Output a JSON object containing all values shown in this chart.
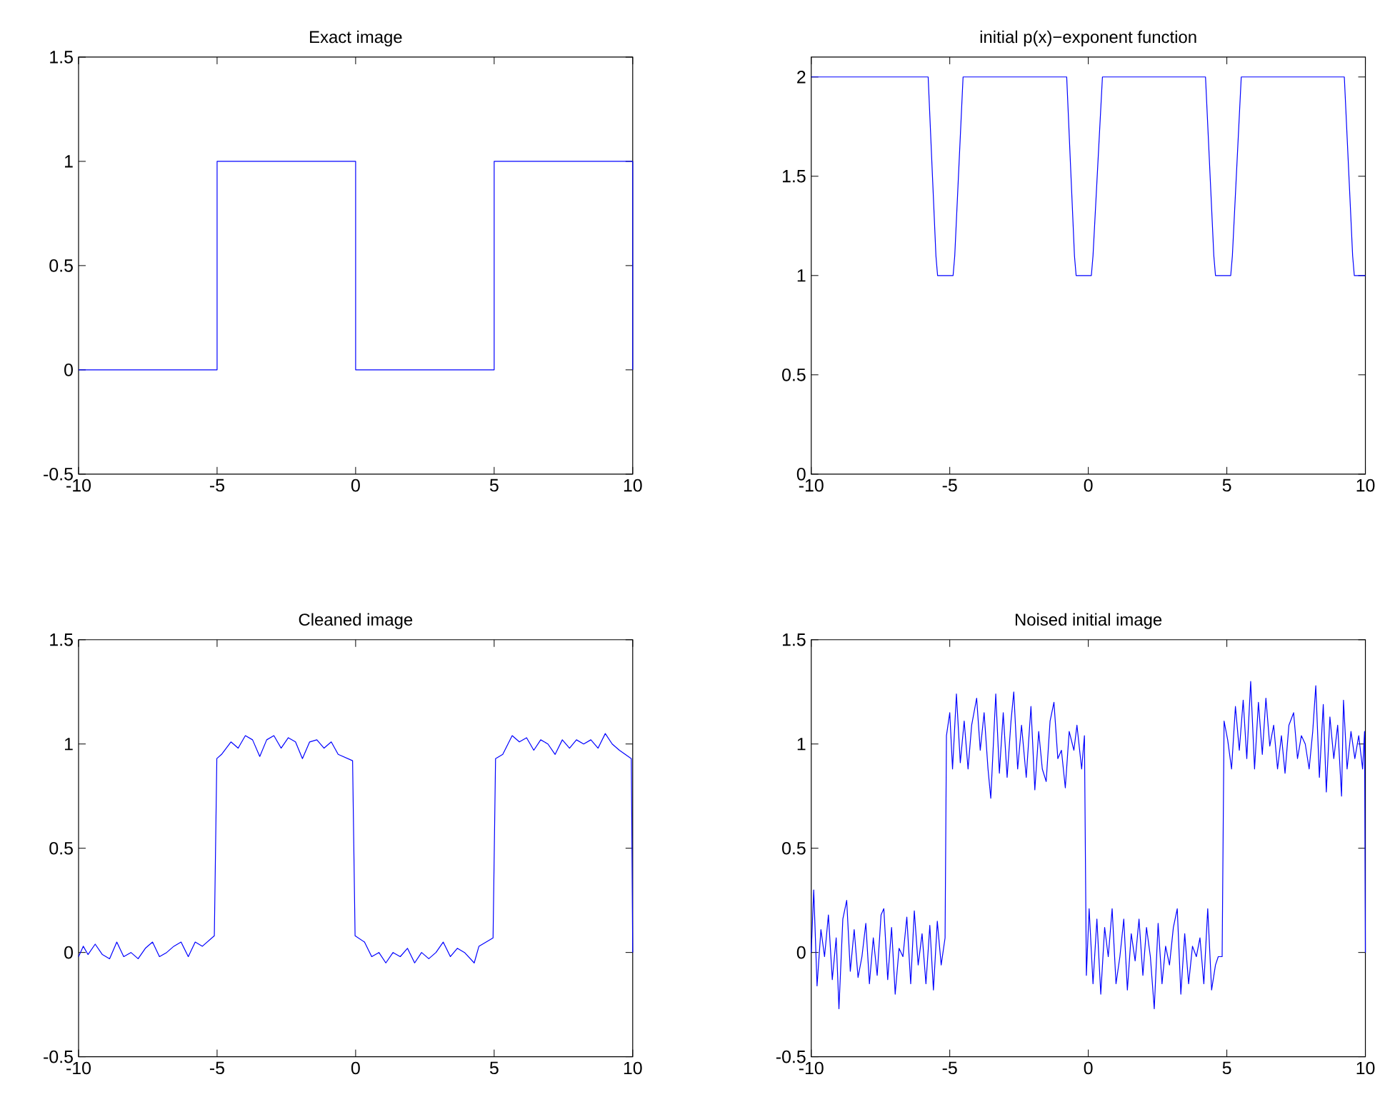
{
  "chart_data": [
    {
      "type": "line",
      "title": "Exact image",
      "color": "#0000ff",
      "xlim": [
        -10,
        10
      ],
      "ylim": [
        -0.5,
        1.5
      ],
      "xticks": [
        -10,
        -5,
        0,
        5,
        10
      ],
      "yticks": [
        -0.5,
        0,
        0.5,
        1,
        1.5
      ],
      "x": [
        -10,
        -5,
        -5,
        0,
        0,
        5,
        5,
        10,
        10
      ],
      "values": [
        0,
        0,
        1,
        1,
        0,
        0,
        1,
        1,
        0
      ]
    },
    {
      "type": "line",
      "title": "initial p(x)−exponent function",
      "color": "#0000ff",
      "xlim": [
        -10,
        10
      ],
      "ylim": [
        0,
        2.1
      ],
      "xticks": [
        -10,
        -5,
        0,
        5,
        10
      ],
      "yticks": [
        0,
        0.5,
        1,
        1.5,
        2
      ],
      "x": [
        -10,
        -5.78,
        -5.5,
        -5.44,
        -4.88,
        -4.82,
        -4.52,
        -0.78,
        -0.5,
        -0.44,
        0.11,
        0.17,
        0.51,
        4.23,
        4.53,
        4.59,
        5.14,
        5.2,
        5.52,
        9.24,
        9.54,
        9.6,
        10
      ],
      "values": [
        2,
        2,
        1.1,
        1,
        1,
        1.1,
        2,
        2,
        1.1,
        1,
        1,
        1.1,
        2,
        2,
        1.1,
        1,
        1,
        1.1,
        2,
        2,
        1.1,
        1,
        1
      ]
    },
    {
      "type": "line",
      "title": "Cleaned image",
      "color": "#0000ff",
      "xlim": [
        -10,
        10
      ],
      "ylim": [
        -0.5,
        1.5
      ],
      "xticks": [
        -10,
        -5,
        0,
        5,
        10
      ],
      "yticks": [
        -0.5,
        0,
        0.5,
        1,
        1.5
      ],
      "x": [
        -10,
        -9.83,
        -9.66,
        -9.4,
        -9.14,
        -8.88,
        -8.62,
        -8.37,
        -8.11,
        -7.85,
        -7.59,
        -7.33,
        -7.08,
        -6.82,
        -6.56,
        -6.3,
        -6.04,
        -5.79,
        -5.53,
        -5.1,
        -5.01,
        -4.84,
        -4.5,
        -4.24,
        -3.98,
        -3.72,
        -3.46,
        -3.21,
        -2.95,
        -2.69,
        -2.43,
        -2.17,
        -1.92,
        -1.66,
        -1.4,
        -1.14,
        -0.88,
        -0.63,
        -0.11,
        -0.02,
        0.32,
        0.58,
        0.84,
        1.09,
        1.35,
        1.61,
        1.87,
        2.13,
        2.38,
        2.64,
        2.9,
        3.16,
        3.42,
        3.67,
        3.93,
        4.28,
        4.45,
        4.96,
        5.05,
        5.31,
        5.65,
        5.91,
        6.17,
        6.43,
        6.68,
        6.94,
        7.2,
        7.46,
        7.72,
        7.97,
        8.23,
        8.49,
        8.75,
        9.01,
        9.26,
        9.52,
        9.95,
        10
      ],
      "values": [
        -0.02,
        0.03,
        -0.01,
        0.04,
        -0.01,
        -0.03,
        0.05,
        -0.02,
        0,
        -0.03,
        0.02,
        0.05,
        -0.02,
        0,
        0.03,
        0.05,
        -0.02,
        0.05,
        0.03,
        0.08,
        0.93,
        0.95,
        1.01,
        0.98,
        1.04,
        1.02,
        0.94,
        1.02,
        1.04,
        0.98,
        1.03,
        1.01,
        0.93,
        1.01,
        1.02,
        0.98,
        1.01,
        0.95,
        0.92,
        0.08,
        0.05,
        -0.02,
        0,
        -0.05,
        0,
        -0.02,
        0.02,
        -0.05,
        0,
        -0.03,
        0,
        0.05,
        -0.02,
        0.02,
        0,
        -0.05,
        0.03,
        0.07,
        0.93,
        0.95,
        1.04,
        1.01,
        1.03,
        0.97,
        1.02,
        1,
        0.95,
        1.02,
        0.98,
        1.02,
        1,
        1.02,
        0.98,
        1.05,
        1,
        0.97,
        0.93,
        0
      ]
    },
    {
      "type": "line",
      "title": "Noised initial image",
      "color": "#0000ff",
      "xlim": [
        -10,
        10
      ],
      "ylim": [
        -0.5,
        1.5
      ],
      "xticks": [
        -10,
        -5,
        0,
        5,
        10
      ],
      "yticks": [
        -0.5,
        0,
        0.5,
        1,
        1.5
      ],
      "x": [
        -10,
        -9.91,
        -9.79,
        -9.65,
        -9.52,
        -9.38,
        -9.24,
        -9.1,
        -9,
        -8.86,
        -8.72,
        -8.59,
        -8.45,
        -8.31,
        -8.17,
        -8.03,
        -7.9,
        -7.76,
        -7.62,
        -7.48,
        -7.38,
        -7.24,
        -7.1,
        -6.97,
        -6.83,
        -6.69,
        -6.55,
        -6.41,
        -6.28,
        -6.14,
        -6,
        -5.86,
        -5.72,
        -5.59,
        -5.45,
        -5.31,
        -5.17,
        -5.12,
        -5,
        -4.9,
        -4.76,
        -4.62,
        -4.48,
        -4.34,
        -4.21,
        -4.03,
        -3.9,
        -3.76,
        -3.62,
        -3.52,
        -3.34,
        -3.21,
        -3.07,
        -2.93,
        -2.79,
        -2.69,
        -2.55,
        -2.41,
        -2.24,
        -2.07,
        -1.93,
        -1.79,
        -1.66,
        -1.52,
        -1.38,
        -1.24,
        -1.1,
        -0.97,
        -0.83,
        -0.69,
        -0.52,
        -0.41,
        -0.24,
        -0.14,
        -0.07,
        0.03,
        0.17,
        0.31,
        0.45,
        0.59,
        0.72,
        0.86,
        1,
        1.14,
        1.28,
        1.41,
        1.55,
        1.69,
        1.83,
        1.97,
        2.1,
        2.24,
        2.38,
        2.52,
        2.66,
        2.79,
        2.93,
        3.07,
        3.21,
        3.34,
        3.48,
        3.62,
        3.76,
        3.9,
        4.03,
        4.17,
        4.31,
        4.45,
        4.59,
        4.69,
        4.83,
        4.9,
        5.03,
        5.17,
        5.31,
        5.45,
        5.59,
        5.72,
        5.86,
        6,
        6.14,
        6.28,
        6.41,
        6.55,
        6.69,
        6.83,
        6.97,
        7.1,
        7.24,
        7.41,
        7.55,
        7.69,
        7.83,
        7.97,
        8.1,
        8.21,
        8.34,
        8.48,
        8.59,
        8.72,
        8.86,
        9,
        9.14,
        9.21,
        9.34,
        9.48,
        9.62,
        9.76,
        9.9,
        9.97,
        10
      ],
      "values": [
        0,
        0.3,
        -0.16,
        0.11,
        -0.02,
        0.18,
        -0.13,
        0.07,
        -0.27,
        0.16,
        0.25,
        -0.09,
        0.11,
        -0.12,
        -0.02,
        0.14,
        -0.15,
        0.07,
        -0.11,
        0.18,
        0.21,
        -0.13,
        0.12,
        -0.2,
        0.02,
        -0.02,
        0.17,
        -0.15,
        0.2,
        -0.06,
        0.09,
        -0.15,
        0.13,
        -0.18,
        0.15,
        -0.06,
        0.07,
        1.04,
        1.15,
        0.88,
        1.24,
        0.91,
        1.11,
        0.88,
        1.09,
        1.22,
        0.97,
        1.15,
        0.88,
        0.74,
        1.24,
        0.86,
        1.15,
        0.84,
        1.11,
        1.25,
        0.88,
        1.09,
        0.84,
        1.18,
        0.78,
        1.06,
        0.88,
        0.82,
        1.11,
        1.2,
        0.93,
        0.97,
        0.79,
        1.06,
        0.97,
        1.09,
        0.88,
        1.04,
        -0.11,
        0.21,
        -0.15,
        0.16,
        -0.2,
        0.12,
        -0.02,
        0.21,
        -0.15,
        -0.02,
        0.16,
        -0.18,
        0.09,
        -0.04,
        0.16,
        -0.11,
        0.12,
        -0.02,
        -0.27,
        0.14,
        -0.15,
        0.03,
        -0.06,
        0.12,
        0.21,
        -0.2,
        0.09,
        -0.15,
        0.03,
        -0.02,
        0.07,
        -0.15,
        0.21,
        -0.18,
        -0.06,
        -0.02,
        -0.02,
        1.11,
        1.02,
        0.88,
        1.18,
        0.97,
        1.21,
        0.93,
        1.3,
        0.88,
        1.2,
        0.95,
        1.22,
        0.99,
        1.09,
        0.88,
        1.04,
        0.86,
        1.09,
        1.15,
        0.93,
        1.04,
        1,
        0.88,
        1.06,
        1.28,
        0.84,
        1.19,
        0.77,
        1.13,
        0.93,
        1.09,
        0.75,
        1.21,
        0.88,
        1.06,
        0.93,
        1.04,
        0.88,
        1.06,
        0
      ]
    }
  ]
}
